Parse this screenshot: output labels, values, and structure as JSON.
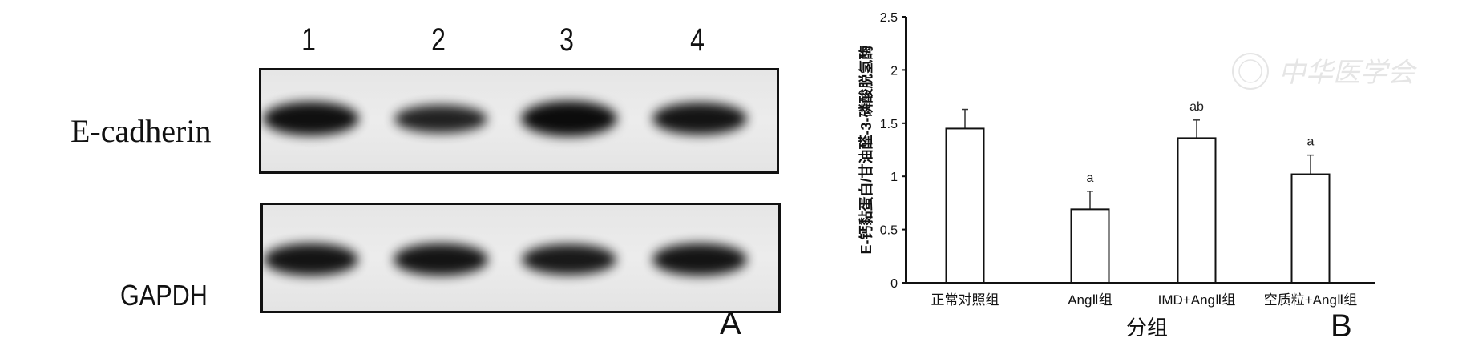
{
  "panel_a": {
    "label": "A",
    "lanes": [
      "1",
      "2",
      "3",
      "4"
    ],
    "rows": [
      {
        "label": "E-cadherin",
        "band_intensity": [
          0.95,
          0.75,
          1.0,
          0.9
        ]
      },
      {
        "label": "GAPDH",
        "band_intensity": [
          0.9,
          0.9,
          0.85,
          0.9
        ]
      }
    ]
  },
  "panel_b": {
    "label": "B"
  },
  "watermark": "中华医学会",
  "chart_data": {
    "type": "bar",
    "categories": [
      "正常对照组",
      "AngⅡ组",
      "IMD+AngⅡ组",
      "空质粒+AngⅡ组"
    ],
    "values": [
      1.45,
      0.69,
      1.36,
      1.02
    ],
    "error": [
      0.18,
      0.17,
      0.17,
      0.18
    ],
    "annotations": [
      "",
      "a",
      "ab",
      "a"
    ],
    "xlabel": "分组",
    "ylabel": "E-钙黏蛋白/甘油醛-3-磷酸脱氢酶",
    "ylim": [
      0,
      2.5
    ],
    "yticks": [
      "0",
      "0.5",
      "1",
      "1.5",
      "2",
      "2.5"
    ],
    "grid": false,
    "colors": {
      "bar_fill": "#ffffff",
      "bar_stroke": "#111111"
    }
  }
}
